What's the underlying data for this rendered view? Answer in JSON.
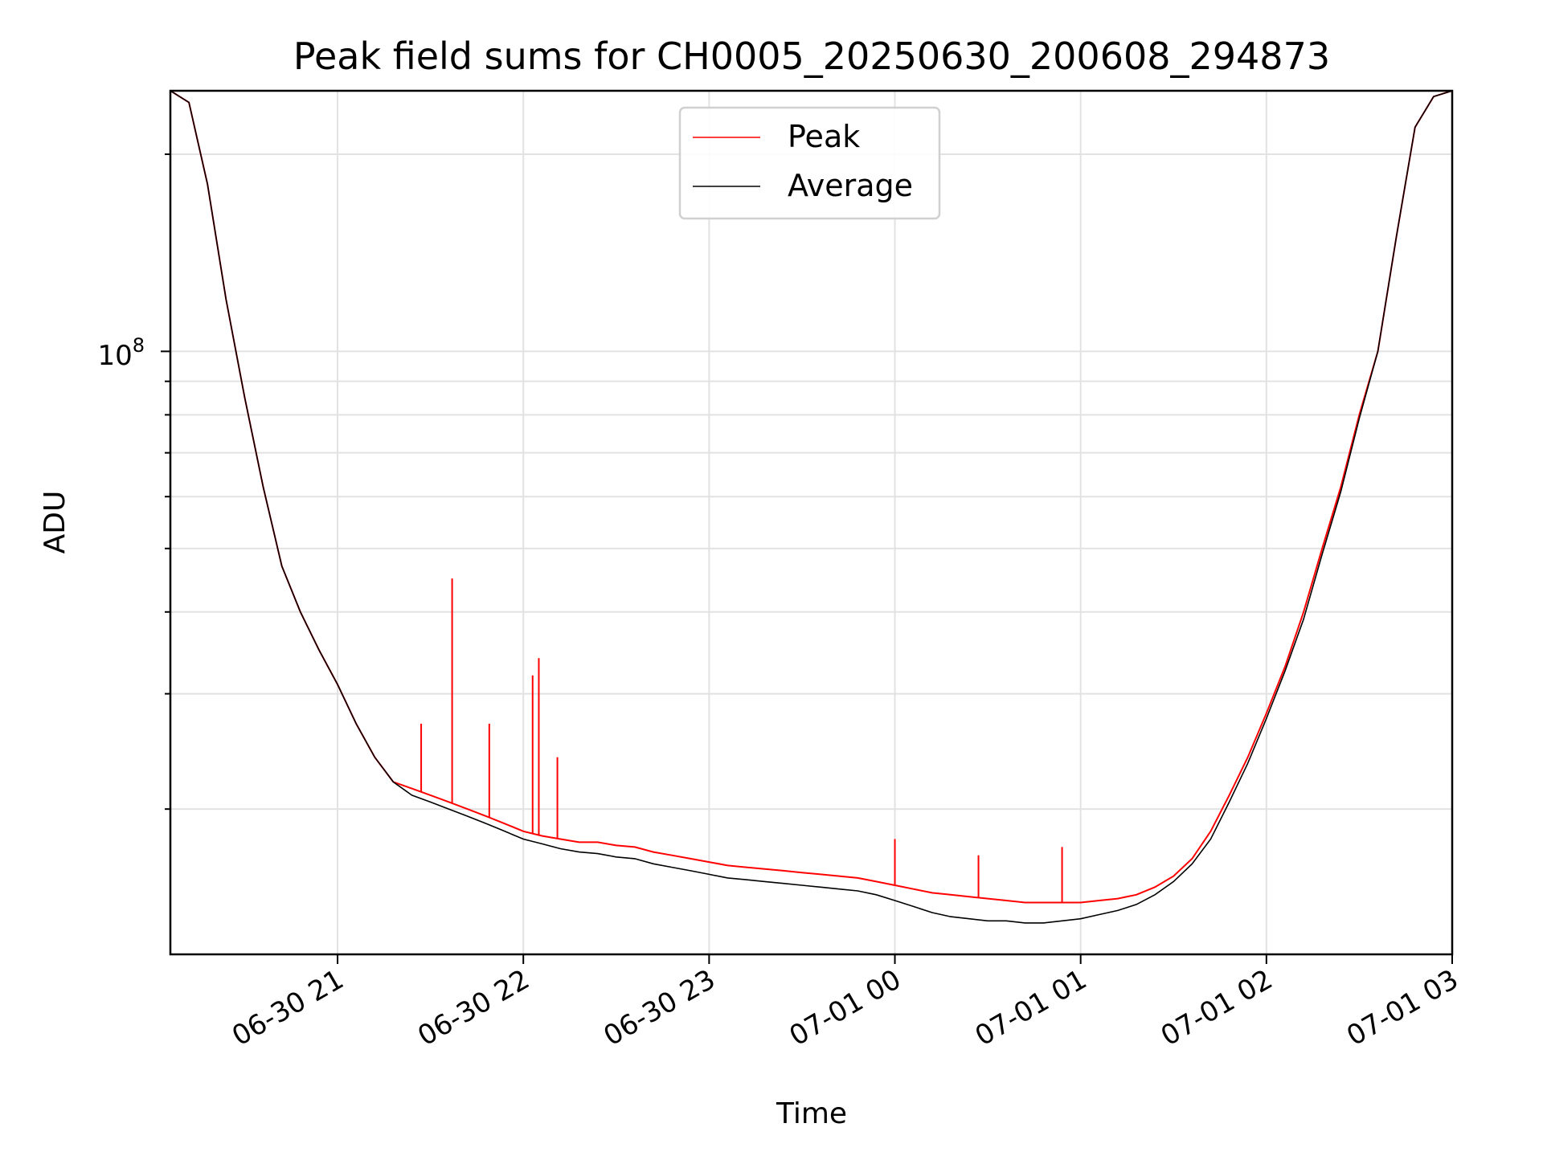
{
  "chart_data": {
    "type": "line",
    "title": "Peak field sums for CH0005_20250630_200608_294873",
    "xlabel": "Time",
    "ylabel": "ADU",
    "yscale": "log",
    "grid": true,
    "legend_position": "top-center",
    "x_ticks": [
      "06-30 21",
      "06-30 22",
      "06-30 23",
      "07-01 00",
      "07-01 01",
      "07-01 02",
      "07-01 03"
    ],
    "y_tick_label": {
      "base": "10",
      "exponent": "8"
    },
    "xlim": [
      "2025-06-30 20:06",
      "2025-07-01 03:00"
    ],
    "ylim": [
      12000000,
      250000000
    ],
    "series": [
      {
        "name": "Peak",
        "color": "#ff0000",
        "x": [
          "20:06",
          "20:12",
          "20:18",
          "20:24",
          "20:30",
          "20:36",
          "20:42",
          "20:48",
          "20:54",
          "21:00",
          "21:06",
          "21:12",
          "21:18",
          "21:24",
          "21:30",
          "21:36",
          "21:42",
          "21:48",
          "21:54",
          "22:00",
          "22:06",
          "22:12",
          "22:18",
          "22:24",
          "22:30",
          "22:36",
          "22:42",
          "22:48",
          "22:54",
          "23:00",
          "23:06",
          "23:12",
          "23:18",
          "23:24",
          "23:30",
          "23:36",
          "23:42",
          "23:48",
          "23:54",
          "00:00",
          "00:06",
          "00:12",
          "00:18",
          "00:24",
          "00:30",
          "00:36",
          "00:42",
          "00:48",
          "00:54",
          "01:00",
          "01:06",
          "01:12",
          "01:18",
          "01:24",
          "01:30",
          "01:36",
          "01:42",
          "01:48",
          "01:54",
          "02:00",
          "02:06",
          "02:12",
          "02:18",
          "02:24",
          "02:30",
          "02:36",
          "02:42",
          "02:48",
          "02:54",
          "03:00"
        ],
        "values": [
          250000000,
          240000000,
          180000000,
          120000000,
          85000000,
          62000000,
          47000000,
          40000000,
          35000000,
          31000000,
          27000000,
          24000000,
          22000000,
          21500000,
          21000000,
          20500000,
          20000000,
          19500000,
          19000000,
          18500000,
          18200000,
          18000000,
          17800000,
          17800000,
          17600000,
          17500000,
          17200000,
          17000000,
          16800000,
          16600000,
          16400000,
          16300000,
          16200000,
          16100000,
          16000000,
          15900000,
          15800000,
          15700000,
          15500000,
          15300000,
          15100000,
          14900000,
          14800000,
          14700000,
          14600000,
          14500000,
          14400000,
          14400000,
          14400000,
          14400000,
          14500000,
          14600000,
          14800000,
          15200000,
          15800000,
          16800000,
          18500000,
          21000000,
          24000000,
          28000000,
          33000000,
          40000000,
          50000000,
          62000000,
          80000000,
          100000000,
          150000000,
          220000000,
          245000000,
          250000000
        ],
        "spikes": [
          {
            "x": "21:27",
            "value": 27000000
          },
          {
            "x": "21:37",
            "value": 45000000
          },
          {
            "x": "21:49",
            "value": 27000000
          },
          {
            "x": "22:03",
            "value": 32000000
          },
          {
            "x": "22:05",
            "value": 34000000
          },
          {
            "x": "22:11",
            "value": 24000000
          },
          {
            "x": "00:00",
            "value": 18000000
          },
          {
            "x": "00:27",
            "value": 17000000
          },
          {
            "x": "00:54",
            "value": 17500000
          }
        ]
      },
      {
        "name": "Average",
        "color": "#000000",
        "x": [
          "20:06",
          "20:12",
          "20:18",
          "20:24",
          "20:30",
          "20:36",
          "20:42",
          "20:48",
          "20:54",
          "21:00",
          "21:06",
          "21:12",
          "21:18",
          "21:24",
          "21:30",
          "21:36",
          "21:42",
          "21:48",
          "21:54",
          "22:00",
          "22:06",
          "22:12",
          "22:18",
          "22:24",
          "22:30",
          "22:36",
          "22:42",
          "22:48",
          "22:54",
          "23:00",
          "23:06",
          "23:12",
          "23:18",
          "23:24",
          "23:30",
          "23:36",
          "23:42",
          "23:48",
          "23:54",
          "00:00",
          "00:06",
          "00:12",
          "00:18",
          "00:24",
          "00:30",
          "00:36",
          "00:42",
          "00:48",
          "00:54",
          "01:00",
          "01:06",
          "01:12",
          "01:18",
          "01:24",
          "01:30",
          "01:36",
          "01:42",
          "01:48",
          "01:54",
          "02:00",
          "02:06",
          "02:12",
          "02:18",
          "02:24",
          "02:30",
          "02:36",
          "02:42",
          "02:48",
          "02:54",
          "03:00"
        ],
        "values": [
          250000000,
          240000000,
          180000000,
          120000000,
          85000000,
          62000000,
          47000000,
          40000000,
          35000000,
          31000000,
          27000000,
          24000000,
          22000000,
          21000000,
          20500000,
          20000000,
          19500000,
          19000000,
          18500000,
          18000000,
          17700000,
          17400000,
          17200000,
          17100000,
          16900000,
          16800000,
          16500000,
          16300000,
          16100000,
          15900000,
          15700000,
          15600000,
          15500000,
          15400000,
          15300000,
          15200000,
          15100000,
          15000000,
          14800000,
          14500000,
          14200000,
          13900000,
          13700000,
          13600000,
          13500000,
          13500000,
          13400000,
          13400000,
          13500000,
          13600000,
          13800000,
          14000000,
          14300000,
          14800000,
          15500000,
          16500000,
          18000000,
          20500000,
          23500000,
          27500000,
          32500000,
          39000000,
          49000000,
          61000000,
          79000000,
          100000000,
          150000000,
          220000000,
          245000000,
          250000000
        ]
      }
    ]
  }
}
